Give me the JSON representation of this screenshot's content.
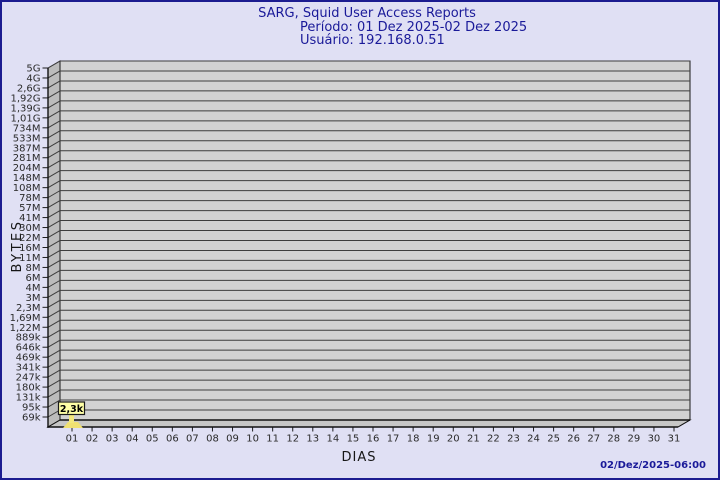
{
  "window": {
    "background_color": "#e0e0f4",
    "frame_color": "#1c1c90"
  },
  "header": {
    "title": "SARG, Squid User Access Reports",
    "period": "Período: 01 Dez 2025-02 Dez 2025",
    "user": "Usuário: 192.168.0.51"
  },
  "footer": {
    "timestamp": "02/Dez/2025-06:00"
  },
  "chart_data": {
    "type": "bar",
    "style": "3d-bar",
    "title": "SARG, Squid User Access Reports",
    "subtitle": [
      "Período: 01 Dez 2025-02 Dez 2025",
      "Usuário: 192.168.0.51"
    ],
    "xlabel": "DIAS",
    "ylabel": "BYTES",
    "categories": [
      "01",
      "02",
      "03",
      "04",
      "05",
      "06",
      "07",
      "08",
      "09",
      "10",
      "11",
      "12",
      "13",
      "14",
      "15",
      "16",
      "17",
      "18",
      "19",
      "20",
      "21",
      "22",
      "23",
      "24",
      "25",
      "26",
      "27",
      "28",
      "29",
      "30",
      "31"
    ],
    "y_axis": {
      "ticks_top_to_bottom": [
        "5G",
        "4G",
        "2,6G",
        "1,92G",
        "1,39G",
        "1,01G",
        "734M",
        "533M",
        "387M",
        "281M",
        "204M",
        "148M",
        "108M",
        "78M",
        "57M",
        "41M",
        "30M",
        "22M",
        "16M",
        "11M",
        "8M",
        "6M",
        "4M",
        "3M",
        "2,3M",
        "1,69M",
        "1,22M",
        "889k",
        "646k",
        "469k",
        "341k",
        "247k",
        "180k",
        "131k",
        "95k",
        "69k"
      ],
      "range": [
        "69k",
        "5G"
      ],
      "scale": "logarithmic-like",
      "grid": true
    },
    "points": [
      {
        "x": "01",
        "label": "2,3k",
        "value_bytes": 2300
      }
    ],
    "legend_position": "none",
    "colors": {
      "grid_face": "#d2d2d2",
      "side_wall": "#bcbcbc",
      "floor": "#c6c6c6",
      "grid_line": "#3d3d3d",
      "bar": "#f0e172",
      "callout_bg": "#ffffa6",
      "text_accent": "#1a1a99"
    }
  }
}
